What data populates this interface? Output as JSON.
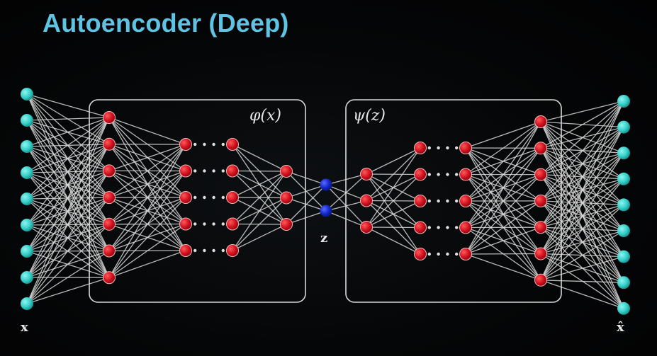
{
  "title": "Autoencoder (Deep)",
  "labels": {
    "encoder": "φ(x)",
    "decoder": "ψ(z)",
    "latent": "z",
    "input": "x",
    "output": "x̂"
  },
  "colors": {
    "title": "#5fc3e4",
    "input_node": "#35cfc9",
    "hidden_node": "#d0101e",
    "latent_node": "#1126c8",
    "edge": "#d8d8d8",
    "box": "#d8d8d8"
  }
}
